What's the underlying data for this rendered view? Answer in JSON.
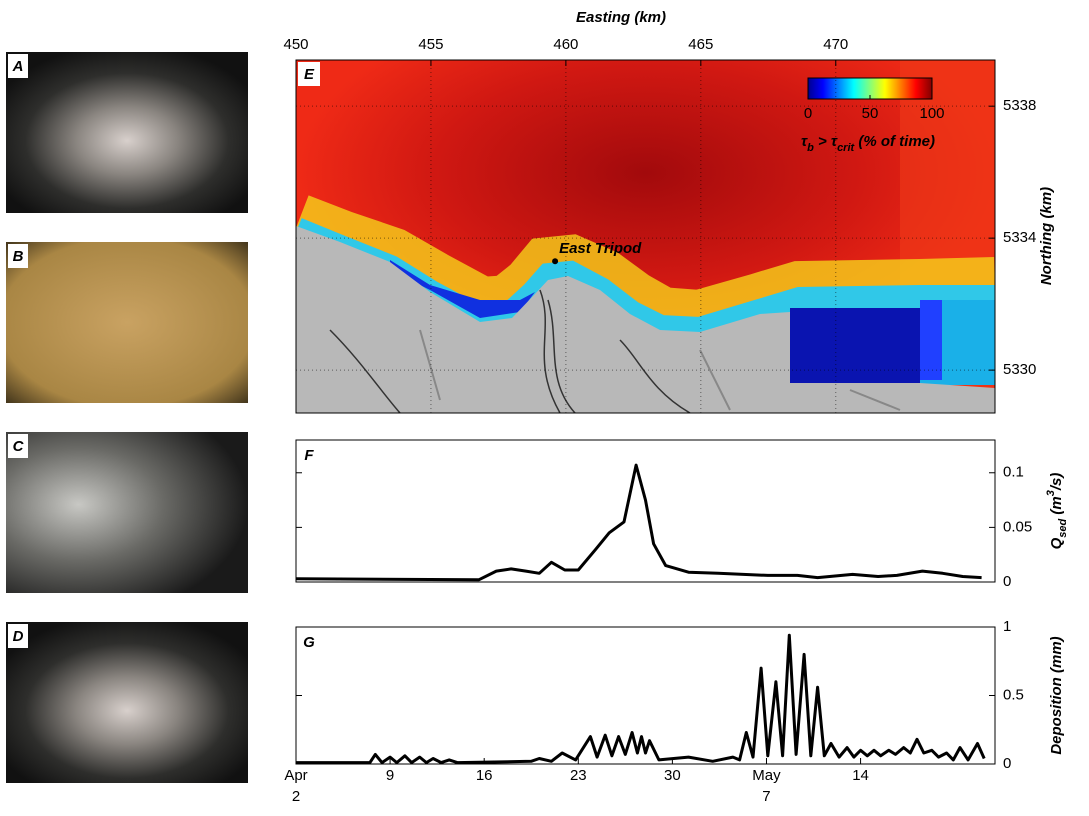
{
  "photos": [
    {
      "label": "A"
    },
    {
      "label": "B"
    },
    {
      "label": "C"
    },
    {
      "label": "D"
    }
  ],
  "chart_data": [
    {
      "type": "map",
      "panel": "E",
      "xlabel": "Easting (km)",
      "ylabel": "Northing (km)",
      "xlim": [
        450,
        475.9
      ],
      "ylim": [
        5328.7,
        5339.4
      ],
      "xticks": [
        450,
        455,
        460,
        465,
        470
      ],
      "yticks": [
        5330,
        5334,
        5338
      ],
      "grid": true,
      "clim": [
        0,
        100
      ],
      "cticks": [
        0,
        50,
        100
      ],
      "colorbar_label": [
        "τ",
        "b",
        " > τ",
        "crit",
        " (% of time)"
      ],
      "annotation": {
        "text": "East Tripod",
        "x": 459.6,
        "y": 5333.3
      }
    },
    {
      "type": "line",
      "panel": "F",
      "ylabel": [
        "Q",
        "sed",
        " (m",
        "3",
        "/s)"
      ],
      "color": "#000000",
      "xlim": [
        0,
        52
      ],
      "ylim": [
        0,
        0.13
      ],
      "yticks": [
        0,
        0.05,
        0.1
      ],
      "x": [
        0,
        13.6,
        14.9,
        16.0,
        17.1,
        18.1,
        19.0,
        20.0,
        21.0,
        22.3,
        23.3,
        24.4,
        25.3,
        26.0,
        26.6,
        27.5,
        29.2,
        31.4,
        35.1,
        37.3,
        38.8,
        41.4,
        43.3,
        44.7,
        46.6,
        48.1,
        49.6,
        51.0
      ],
      "values": [
        0.003,
        0.002,
        0.01,
        0.012,
        0.01,
        0.008,
        0.018,
        0.011,
        0.011,
        0.03,
        0.045,
        0.055,
        0.107,
        0.075,
        0.035,
        0.015,
        0.009,
        0.008,
        0.006,
        0.006,
        0.004,
        0.007,
        0.005,
        0.006,
        0.01,
        0.008,
        0.005,
        0.004
      ]
    },
    {
      "type": "line",
      "panel": "G",
      "ylabel": "Deposition (mm)",
      "color": "#000000",
      "xlim": [
        0,
        52
      ],
      "ylim": [
        0,
        1
      ],
      "yticks": [
        0,
        0.5,
        1
      ],
      "xticks": [
        {
          "value": 0,
          "label": [
            "Apr",
            "2"
          ]
        },
        {
          "value": 7,
          "label": [
            "9"
          ]
        },
        {
          "value": 14,
          "label": [
            "16"
          ]
        },
        {
          "value": 21,
          "label": [
            "23"
          ]
        },
        {
          "value": 28,
          "label": [
            "30"
          ]
        },
        {
          "value": 35,
          "label": [
            "May",
            "7"
          ]
        },
        {
          "value": 42,
          "label": [
            "14"
          ]
        }
      ],
      "x": [
        0,
        5.5,
        5.9,
        6.4,
        7.0,
        7.5,
        8.1,
        8.6,
        9.2,
        9.7,
        10.2,
        10.8,
        11.4,
        12.0,
        17.5,
        18.1,
        19.0,
        19.8,
        20.8,
        21.9,
        22.4,
        23.0,
        23.5,
        24.0,
        24.5,
        25.0,
        25.4,
        25.7,
        26.0,
        26.3,
        27.0,
        29.2,
        31.0,
        32.5,
        33.0,
        33.5,
        34.0,
        34.6,
        35.1,
        35.7,
        36.2,
        36.7,
        37.2,
        37.8,
        38.3,
        38.8,
        39.3,
        39.8,
        40.4,
        41.0,
        41.5,
        42.0,
        42.5,
        43.0,
        43.5,
        44.1,
        44.6,
        45.2,
        45.7,
        46.2,
        46.7,
        47.3,
        47.8,
        48.4,
        48.9,
        49.4,
        50.0,
        50.7,
        51.2
      ],
      "values": [
        0.01,
        0.01,
        0.07,
        0.01,
        0.05,
        0.01,
        0.06,
        0.01,
        0.05,
        0.01,
        0.04,
        0.01,
        0.03,
        0.01,
        0.02,
        0.04,
        0.02,
        0.08,
        0.03,
        0.2,
        0.05,
        0.21,
        0.06,
        0.2,
        0.07,
        0.23,
        0.08,
        0.2,
        0.08,
        0.17,
        0.03,
        0.05,
        0.02,
        0.05,
        0.03,
        0.23,
        0.05,
        0.7,
        0.06,
        0.6,
        0.06,
        0.94,
        0.07,
        0.8,
        0.06,
        0.56,
        0.06,
        0.15,
        0.05,
        0.12,
        0.05,
        0.1,
        0.06,
        0.1,
        0.06,
        0.1,
        0.07,
        0.12,
        0.08,
        0.18,
        0.08,
        0.1,
        0.05,
        0.08,
        0.03,
        0.12,
        0.03,
        0.15,
        0.04
      ]
    }
  ]
}
